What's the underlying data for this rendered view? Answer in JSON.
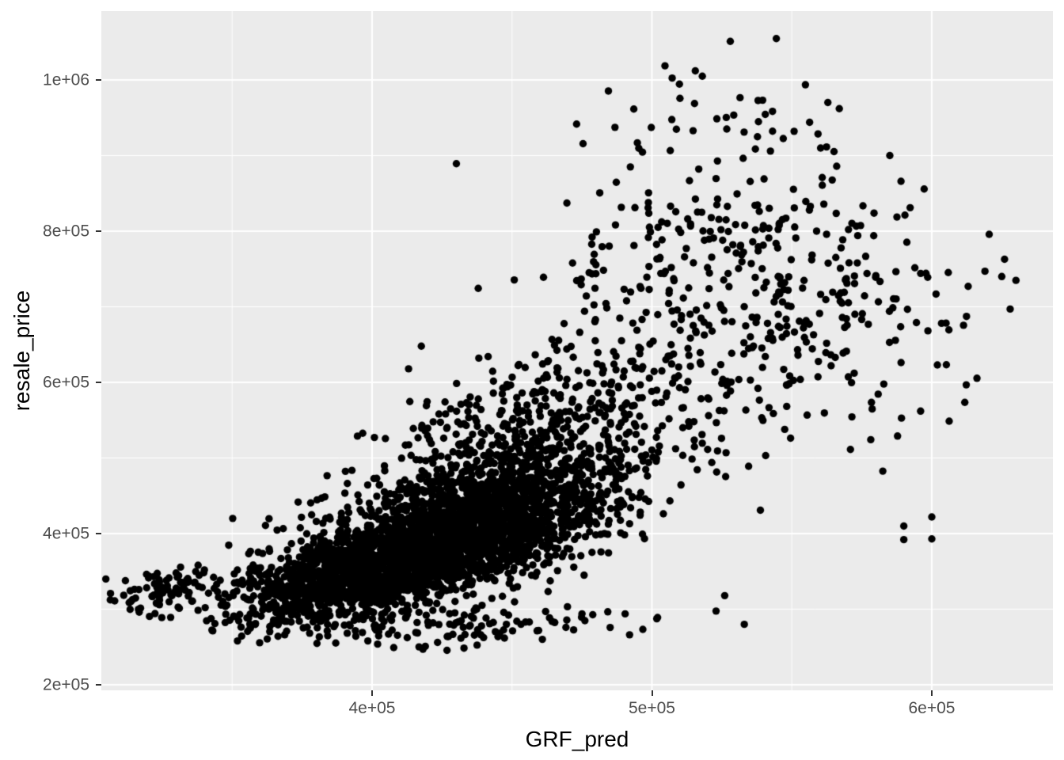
{
  "figure": {
    "background": "#FFFFFF"
  },
  "chart_data": {
    "type": "scatter",
    "title": "",
    "xlabel": "GRF_pred",
    "ylabel": "resale_price",
    "x_domain": [
      303250,
      643280
    ],
    "y_domain": [
      192700,
      1091100
    ],
    "x_ticks": [
      {
        "value": 400000,
        "label": "4e+05"
      },
      {
        "value": 500000,
        "label": "5e+05"
      },
      {
        "value": 600000,
        "label": "6e+05"
      }
    ],
    "x_minor_ticks": [
      350000,
      450000,
      550000
    ],
    "y_ticks": [
      {
        "value": 200000,
        "label": "2e+05"
      },
      {
        "value": 400000,
        "label": "4e+05"
      },
      {
        "value": 600000,
        "label": "6e+05"
      },
      {
        "value": 800000,
        "label": "8e+05"
      },
      {
        "value": 1000000,
        "label": "1e+06"
      }
    ],
    "y_minor_ticks": [
      300000,
      500000,
      700000,
      900000
    ],
    "grid": "on",
    "legend": "none",
    "style": {
      "panel_bg": "#EBEBEB",
      "grid_color": "#FFFFFF",
      "grid_major_width": 2,
      "grid_minor_width": 1,
      "point_color": "#000000",
      "point_radius": 4.7,
      "tick_text_color": "#4D4D4D",
      "tick_mark_color": "#333333",
      "axis_title_color": "#000000"
    },
    "point_cloud": {
      "seed": 42,
      "clusters": [
        {
          "n": 2000,
          "cx": 405000,
          "cy": 355000,
          "sx": 27000,
          "sy": 33000,
          "r": 0.6
        },
        {
          "n": 1400,
          "cx": 438000,
          "cy": 425000,
          "sx": 26000,
          "sy": 40000,
          "r": 0.45
        },
        {
          "n": 520,
          "cx": 462000,
          "cy": 535000,
          "sx": 32000,
          "sy": 55000,
          "r": 0.35
        },
        {
          "n": 300,
          "cx": 522000,
          "cy": 735000,
          "sx": 32000,
          "sy": 85000,
          "r": 0.2
        },
        {
          "n": 90,
          "cx": 562000,
          "cy": 670000,
          "sx": 26000,
          "sy": 95000,
          "r": 0.1
        },
        {
          "n": 130,
          "cx": 428000,
          "cy": 278000,
          "sx": 34000,
          "sy": 16000,
          "r": 0.35
        },
        {
          "n": 80,
          "cx": 326000,
          "cy": 328000,
          "sx": 9000,
          "sy": 14000,
          "r": 0.5
        },
        {
          "n": 40,
          "cx": 530000,
          "cy": 930000,
          "sx": 25000,
          "sy": 45000,
          "r": 0.0
        },
        {
          "n": 25,
          "cx": 585000,
          "cy": 680000,
          "sx": 15000,
          "sy": 70000,
          "r": 0.0
        }
      ],
      "outlier_points": [
        [
          528000,
          1051000
        ],
        [
          515500,
          1012000
        ],
        [
          518000,
          1005000
        ],
        [
          589000,
          866000
        ],
        [
          613000,
          727000
        ],
        [
          619000,
          747000
        ],
        [
          625000,
          740000
        ],
        [
          628000,
          697000
        ],
        [
          602000,
          623000
        ],
        [
          596000,
          562000
        ],
        [
          590000,
          410000
        ],
        [
          600000,
          422000
        ],
        [
          590000,
          392000
        ],
        [
          600000,
          393000
        ],
        [
          533000,
          280000
        ],
        [
          526000,
          318000
        ]
      ]
    }
  }
}
